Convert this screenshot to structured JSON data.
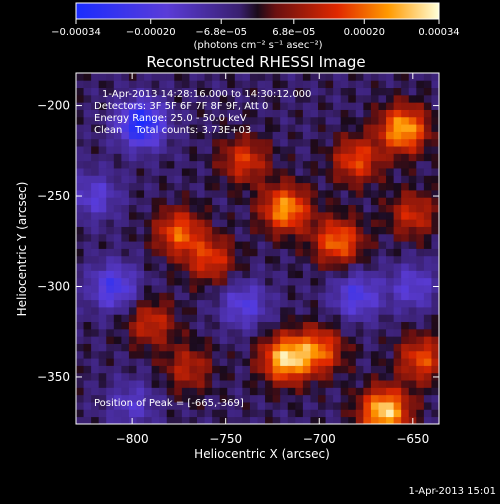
{
  "chart_data": {
    "type": "heatmap",
    "title": "Reconstructed RHESSI Image",
    "xlabel": "Heliocentric X (arcsec)",
    "ylabel": "Heliocentric Y (arcsec)",
    "xlim": [
      -830,
      -636
    ],
    "ylim": [
      -376,
      -182
    ],
    "x_ticks": [
      -800,
      -750,
      -700,
      -650
    ],
    "y_ticks": [
      -350,
      -300,
      -250,
      -200
    ],
    "x_tick_labels": [
      "−800",
      "−750",
      "−700",
      "−650"
    ],
    "y_tick_labels": [
      "−350",
      "−300",
      "−250",
      "−200"
    ],
    "colorbar": {
      "range": [
        -0.00034,
        0.00034
      ],
      "ticks": [
        -0.00034,
        -0.0002,
        -6.8e-05,
        6.8e-05,
        0.0002,
        0.00034
      ],
      "tick_labels": [
        "−0.00034",
        "−0.00020",
        "−6.8e−05",
        "6.8e−05",
        "0.00020",
        "0.00034"
      ],
      "unit_label": "(photons cm⁻² s⁻¹ asec⁻²)"
    },
    "annotations": {
      "time_range": "1-Apr-2013 14:28:16.000 to 14:30:12.000",
      "detectors": "Detectors: 3F 5F 6F 7F 8F 9F, Att 0",
      "energy_range": "Energy Range: 25.0 - 50.0 keV",
      "method": "Clean    Total counts: 3.73E+03",
      "peak": "Position of Peak = [-665,-369]"
    },
    "sources": [
      {
        "x": -655,
        "y": -213,
        "intensity": 0.0003
      },
      {
        "x": -718,
        "y": -257,
        "intensity": 0.00028
      },
      {
        "x": -690,
        "y": -275,
        "intensity": 0.00024
      },
      {
        "x": -680,
        "y": -230,
        "intensity": 0.0002
      },
      {
        "x": -775,
        "y": -270,
        "intensity": 0.00022
      },
      {
        "x": -758,
        "y": -285,
        "intensity": 0.00018
      },
      {
        "x": -718,
        "y": -340,
        "intensity": 0.00032
      },
      {
        "x": -700,
        "y": -335,
        "intensity": 0.00022
      },
      {
        "x": -665,
        "y": -369,
        "intensity": 0.00034
      },
      {
        "x": -645,
        "y": -340,
        "intensity": 0.0002
      },
      {
        "x": -790,
        "y": -320,
        "intensity": 0.00016
      },
      {
        "x": -770,
        "y": -345,
        "intensity": 0.00014
      },
      {
        "x": -740,
        "y": -230,
        "intensity": 0.00018
      },
      {
        "x": -650,
        "y": -260,
        "intensity": 0.00016
      },
      {
        "x": -795,
        "y": -210,
        "intensity": -0.0003
      },
      {
        "x": -810,
        "y": -300,
        "intensity": -0.0002
      },
      {
        "x": -740,
        "y": -310,
        "intensity": -0.00016
      },
      {
        "x": -680,
        "y": -305,
        "intensity": -0.00018
      },
      {
        "x": -650,
        "y": -300,
        "intensity": -0.00014
      },
      {
        "x": -820,
        "y": -250,
        "intensity": -0.00014
      },
      {
        "x": -800,
        "y": -365,
        "intensity": -0.00012
      }
    ],
    "grid": false,
    "legend": "none"
  },
  "footer": {
    "timestamp": "1-Apr-2013 15:01"
  }
}
